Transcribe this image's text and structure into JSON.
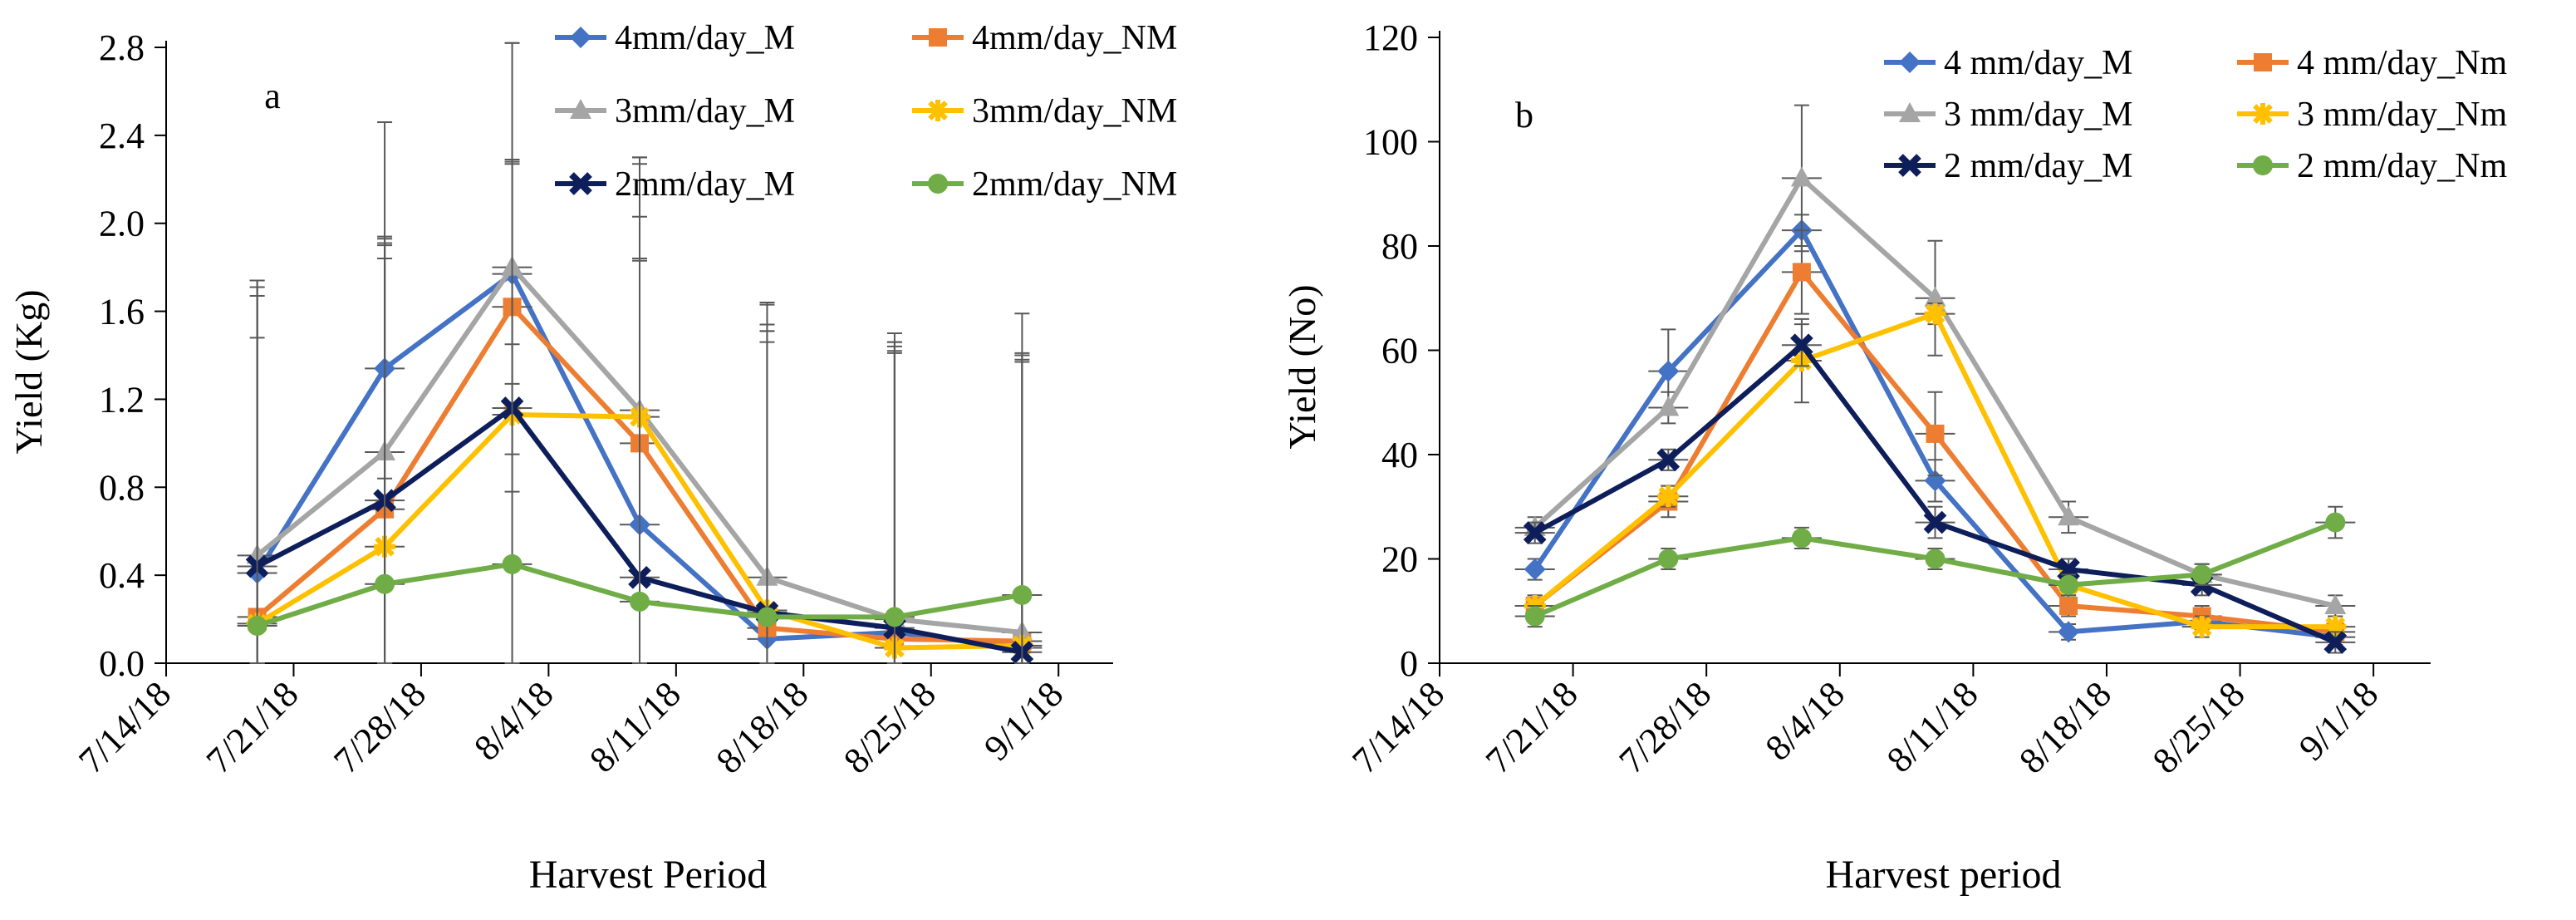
{
  "chart_data": [
    {
      "type": "line",
      "panel_label": "a",
      "xlabel": "Harvest Period",
      "ylabel": "Yield (Kg)",
      "ylim": [
        0,
        2.8
      ],
      "ytick_labels": [
        "0.0",
        "0.4",
        "0.8",
        "1.2",
        "1.6",
        "2.0",
        "2.4",
        "2.8"
      ],
      "xlim": [
        "7/14/18",
        "9/4/18"
      ],
      "xtick_labels": [
        "7/14/18",
        "7/21/18",
        "7/28/18",
        "8/4/18",
        "8/11/18",
        "8/18/18",
        "8/25/18",
        "9/1/18"
      ],
      "x_days": [
        5,
        12,
        19,
        26,
        33,
        40,
        47
      ],
      "legend_position": "top",
      "series": [
        {
          "name": "4mm/day_M",
          "color": "#4472C4",
          "marker": "diamond",
          "values": [
            0.41,
            1.34,
            1.77,
            0.63,
            0.11,
            0.14,
            0.07
          ],
          "error": [
            1.3,
            0.5,
            0.5,
            1.4,
            1.4,
            1.3,
            1.3
          ]
        },
        {
          "name": "4mm/day_NM",
          "color": "#ED7D31",
          "marker": "square",
          "values": [
            0.21,
            0.7,
            1.62,
            1.0,
            0.16,
            0.11,
            0.1
          ],
          "error": [
            1.5,
            1.2,
            0.67,
            1.3,
            1.3,
            1.3,
            1.3
          ]
        },
        {
          "name": "3mm/day_M",
          "color": "#A5A5A5",
          "marker": "triangle",
          "values": [
            0.49,
            0.96,
            1.8,
            1.15,
            0.39,
            0.2,
            0.14
          ],
          "error": [
            1.25,
            1.5,
            1.02,
            1.15,
            1.25,
            1.3,
            1.45
          ]
        },
        {
          "name": "3mm/day_NM",
          "color": "#FFC000",
          "marker": "star",
          "values": [
            0.18,
            0.53,
            1.13,
            1.12,
            0.24,
            0.07,
            0.08
          ],
          "error": [
            1.3,
            1.4,
            1.15,
            1.15,
            1.3,
            1.35,
            1.3
          ]
        },
        {
          "name": "2mm/day_M",
          "color": "#0D1E5B",
          "marker": "cross",
          "values": [
            0.44,
            0.74,
            1.16,
            0.39,
            0.23,
            0.16,
            0.05
          ],
          "error": [
            1.3,
            1.2,
            1.66,
            1.45,
            1.4,
            1.3,
            1.35
          ]
        },
        {
          "name": "2mm/day_NM",
          "color": "#70AD47",
          "marker": "circle",
          "values": [
            0.17,
            0.36,
            0.45,
            0.28,
            0.21,
            0.21,
            0.31
          ],
          "error": [
            1.5,
            1.55,
            1.0,
            1.55,
            1.3,
            1.25,
            1.1
          ]
        }
      ]
    },
    {
      "type": "line",
      "panel_label": "b",
      "xlabel": "Harvest period",
      "ylabel": "Yield (No)",
      "ylim": [
        0,
        120
      ],
      "ytick_labels": [
        "0",
        "20",
        "40",
        "60",
        "80",
        "100",
        "120"
      ],
      "xlim": [
        "7/14/18",
        "9/4/18"
      ],
      "xtick_labels": [
        "7/14/18",
        "7/21/18",
        "7/28/18",
        "8/4/18",
        "8/11/18",
        "8/18/18",
        "8/25/18",
        "9/1/18"
      ],
      "x_days": [
        5,
        12,
        19,
        26,
        33,
        40,
        47
      ],
      "legend_position": "top-right",
      "series": [
        {
          "name": "4 mm/day_M",
          "color": "#4472C4",
          "marker": "diamond",
          "values": [
            18,
            56,
            83,
            35,
            6,
            8,
            5
          ],
          "error": [
            2,
            8,
            3,
            4,
            1.5,
            1.5,
            1.5
          ]
        },
        {
          "name": "4 mm/day_Nm",
          "color": "#ED7D31",
          "marker": "square",
          "values": [
            11,
            31,
            75,
            44,
            11,
            9,
            6
          ],
          "error": [
            2,
            3,
            8,
            8,
            2,
            2,
            2
          ]
        },
        {
          "name": "3 mm/day_M",
          "color": "#A5A5A5",
          "marker": "triangle",
          "values": [
            26,
            49,
            93,
            70,
            28,
            17,
            11
          ],
          "error": [
            2,
            3,
            14,
            11,
            3,
            2,
            2
          ]
        },
        {
          "name": "3 mm/day_Nm",
          "color": "#FFC000",
          "marker": "star",
          "values": [
            11,
            32,
            58,
            67,
            15,
            7,
            7
          ],
          "error": [
            2,
            2,
            8,
            2,
            2,
            2,
            2
          ]
        },
        {
          "name": "2 mm/day_M",
          "color": "#0D1E5B",
          "marker": "cross",
          "values": [
            25,
            39,
            61,
            27,
            18,
            15,
            4
          ],
          "error": [
            2,
            2,
            4,
            3,
            2,
            2,
            2
          ]
        },
        {
          "name": "2 mm/day_Nm",
          "color": "#70AD47",
          "marker": "circle",
          "values": [
            9,
            20,
            24,
            20,
            15,
            17,
            27
          ],
          "error": [
            2,
            2,
            2,
            2,
            2,
            2,
            3
          ]
        }
      ]
    }
  ]
}
